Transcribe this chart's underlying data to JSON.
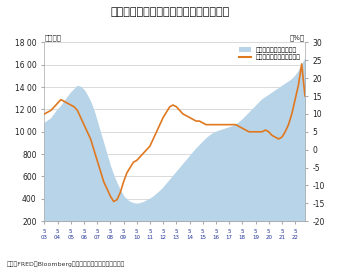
{
  "title": "建設中の新築住宅件数と住宅価格の推移",
  "ylabel_left": "（千件）",
  "ylabel_right": "（%）",
  "footnote": "出所：FRED、Bloombergのデータをもとに東洋証券作成",
  "legend_area": "建設中の新築住宅（左）",
  "legend_line": "価格中央値（前年比、右）",
  "ylim_left": [
    200,
    1800
  ],
  "ylim_right": [
    -20,
    30
  ],
  "yticks_left": [
    200,
    400,
    600,
    800,
    1000,
    1200,
    1400,
    1600,
    1800
  ],
  "yticks_right": [
    -20,
    -15,
    -10,
    -5,
    0,
    5,
    10,
    15,
    20,
    25,
    30
  ],
  "area_color": "#b8d4e8",
  "line_color": "#e07820",
  "background_color": "#ffffff",
  "x_tick_years": [
    "03",
    "04",
    "05",
    "06",
    "07",
    "08",
    "09",
    "10",
    "11",
    "12",
    "13",
    "14",
    "15",
    "16",
    "17",
    "18",
    "19",
    "20",
    "21",
    "22"
  ],
  "housing_under_construction": [
    1080,
    1100,
    1120,
    1160,
    1200,
    1230,
    1270,
    1310,
    1350,
    1380,
    1410,
    1400,
    1370,
    1320,
    1260,
    1180,
    1080,
    980,
    880,
    780,
    680,
    600,
    530,
    470,
    420,
    390,
    370,
    360,
    355,
    360,
    370,
    385,
    400,
    420,
    445,
    470,
    500,
    535,
    570,
    605,
    640,
    675,
    710,
    745,
    780,
    815,
    850,
    880,
    910,
    940,
    965,
    985,
    1000,
    1010,
    1020,
    1030,
    1040,
    1050,
    1065,
    1085,
    1110,
    1140,
    1170,
    1200,
    1230,
    1260,
    1290,
    1310,
    1330,
    1350,
    1370,
    1390,
    1410,
    1430,
    1450,
    1470,
    1500,
    1540,
    1600,
    1650
  ],
  "price_yoy": [
    10.0,
    10.5,
    11.0,
    12.0,
    13.0,
    14.0,
    13.5,
    13.0,
    12.5,
    12.0,
    11.0,
    9.0,
    7.0,
    5.0,
    3.0,
    0.0,
    -3.0,
    -6.0,
    -9.0,
    -11.0,
    -13.0,
    -14.5,
    -14.0,
    -12.0,
    -9.0,
    -6.5,
    -5.0,
    -3.5,
    -3.0,
    -2.0,
    -1.0,
    0.0,
    1.0,
    3.0,
    5.0,
    7.0,
    9.0,
    10.5,
    12.0,
    12.5,
    12.0,
    11.0,
    10.0,
    9.5,
    9.0,
    8.5,
    8.0,
    8.0,
    7.5,
    7.0,
    7.0,
    7.0,
    7.0,
    7.0,
    7.0,
    7.0,
    7.0,
    7.0,
    7.0,
    6.5,
    6.0,
    5.5,
    5.0,
    5.0,
    5.0,
    5.0,
    5.0,
    5.5,
    5.0,
    4.0,
    3.5,
    3.0,
    3.5,
    5.0,
    7.0,
    10.0,
    14.0,
    18.0,
    24.0,
    15.0
  ]
}
